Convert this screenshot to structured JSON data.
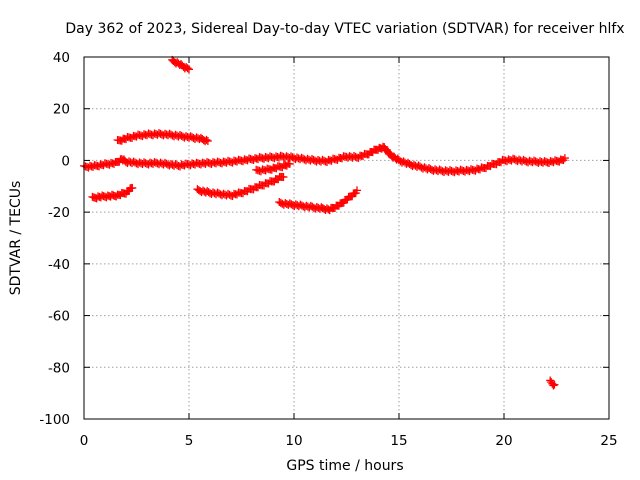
{
  "chart_data": {
    "type": "scatter",
    "title": "Day 362 of 2023, Sidereal Day-to-day VTEC variation (SDTVAR) for receiver hlfx",
    "xlabel": "GPS time / hours",
    "ylabel": "SDTVAR / TECUs",
    "xlim": [
      0,
      25
    ],
    "ylim": [
      -100,
      40
    ],
    "x_ticks": [
      0,
      5,
      10,
      15,
      20,
      25
    ],
    "y_ticks": [
      -100,
      -80,
      -60,
      -40,
      -20,
      0,
      20,
      40
    ],
    "x_tick_labels": [
      "0",
      "5",
      "10",
      "15",
      "20",
      "25"
    ],
    "y_tick_labels": [
      "-100",
      "-80",
      "-60",
      "-40",
      "-20",
      "0",
      "20",
      "40"
    ],
    "grid": true,
    "marker": "plus",
    "color": "#ff0000",
    "series": [
      {
        "points": [
          [
            0.0,
            -2.5
          ],
          [
            0.5,
            -2.2
          ],
          [
            1.0,
            -1.5
          ],
          [
            1.5,
            -1.0
          ],
          [
            1.8,
            0.5
          ],
          [
            2.0,
            -0.5
          ],
          [
            2.5,
            -1.0
          ],
          [
            3.0,
            -1.2
          ],
          [
            3.5,
            -1.0
          ],
          [
            4.0,
            -1.5
          ],
          [
            4.5,
            -2.0
          ],
          [
            5.0,
            -1.5
          ],
          [
            5.5,
            -1.2
          ],
          [
            6.0,
            -1.0
          ],
          [
            6.5,
            -0.8
          ],
          [
            7.0,
            -0.5
          ],
          [
            7.5,
            0.0
          ],
          [
            8.0,
            0.5
          ],
          [
            8.5,
            1.0
          ],
          [
            9.0,
            1.2
          ],
          [
            9.5,
            1.5
          ],
          [
            10.0,
            1.0
          ],
          [
            10.5,
            0.5
          ],
          [
            11.0,
            0.0
          ],
          [
            11.5,
            -0.3
          ],
          [
            12.0,
            0.5
          ],
          [
            12.5,
            1.5
          ],
          [
            13.0,
            1.2
          ],
          [
            13.5,
            2.5
          ],
          [
            14.0,
            4.5
          ],
          [
            14.3,
            5.0
          ],
          [
            14.6,
            2.0
          ],
          [
            15.0,
            0.0
          ],
          [
            15.5,
            -1.5
          ],
          [
            16.0,
            -2.5
          ],
          [
            16.5,
            -3.5
          ],
          [
            17.0,
            -4.0
          ],
          [
            17.5,
            -4.2
          ],
          [
            18.0,
            -4.0
          ],
          [
            18.5,
            -3.8
          ],
          [
            19.0,
            -3.0
          ],
          [
            19.5,
            -1.5
          ],
          [
            20.0,
            0.0
          ],
          [
            20.5,
            0.3
          ],
          [
            21.0,
            -0.3
          ],
          [
            21.5,
            -0.5
          ],
          [
            22.0,
            -0.7
          ],
          [
            22.5,
            -0.3
          ],
          [
            22.9,
            0.5
          ]
        ]
      },
      {
        "points": [
          [
            0.4,
            -14.5
          ],
          [
            0.8,
            -14.0
          ],
          [
            1.2,
            -13.8
          ],
          [
            1.6,
            -13.5
          ],
          [
            2.0,
            -12.5
          ],
          [
            2.3,
            -10.5
          ]
        ]
      },
      {
        "points": [
          [
            1.6,
            7.5
          ],
          [
            2.0,
            8.5
          ],
          [
            2.5,
            9.5
          ],
          [
            3.0,
            10.0
          ],
          [
            3.5,
            10.2
          ],
          [
            4.0,
            10.0
          ],
          [
            4.5,
            9.5
          ],
          [
            5.0,
            9.0
          ],
          [
            5.5,
            8.5
          ],
          [
            5.9,
            7.5
          ]
        ]
      },
      {
        "points": [
          [
            4.2,
            38.5
          ],
          [
            4.5,
            37.5
          ],
          [
            4.8,
            36.0
          ],
          [
            5.0,
            35.5
          ]
        ]
      },
      {
        "points": [
          [
            5.4,
            -11.5
          ],
          [
            6.0,
            -12.5
          ],
          [
            6.5,
            -13.0
          ],
          [
            7.0,
            -13.5
          ],
          [
            7.5,
            -12.5
          ],
          [
            8.0,
            -11.0
          ],
          [
            8.5,
            -9.5
          ],
          [
            9.0,
            -8.0
          ],
          [
            9.5,
            -6.0
          ]
        ]
      },
      {
        "points": [
          [
            8.2,
            -4.0
          ],
          [
            8.8,
            -3.5
          ],
          [
            9.3,
            -2.5
          ],
          [
            9.8,
            -1.5
          ]
        ]
      },
      {
        "points": [
          [
            9.3,
            -16.5
          ],
          [
            9.8,
            -17.0
          ],
          [
            10.3,
            -17.5
          ],
          [
            10.8,
            -18.0
          ],
          [
            11.3,
            -18.5
          ],
          [
            11.7,
            -19.0
          ],
          [
            12.2,
            -17.0
          ],
          [
            12.6,
            -14.5
          ],
          [
            13.0,
            -12.0
          ]
        ]
      },
      {
        "points": [
          [
            22.2,
            -85.5
          ],
          [
            22.4,
            -87.0
          ]
        ]
      }
    ]
  }
}
